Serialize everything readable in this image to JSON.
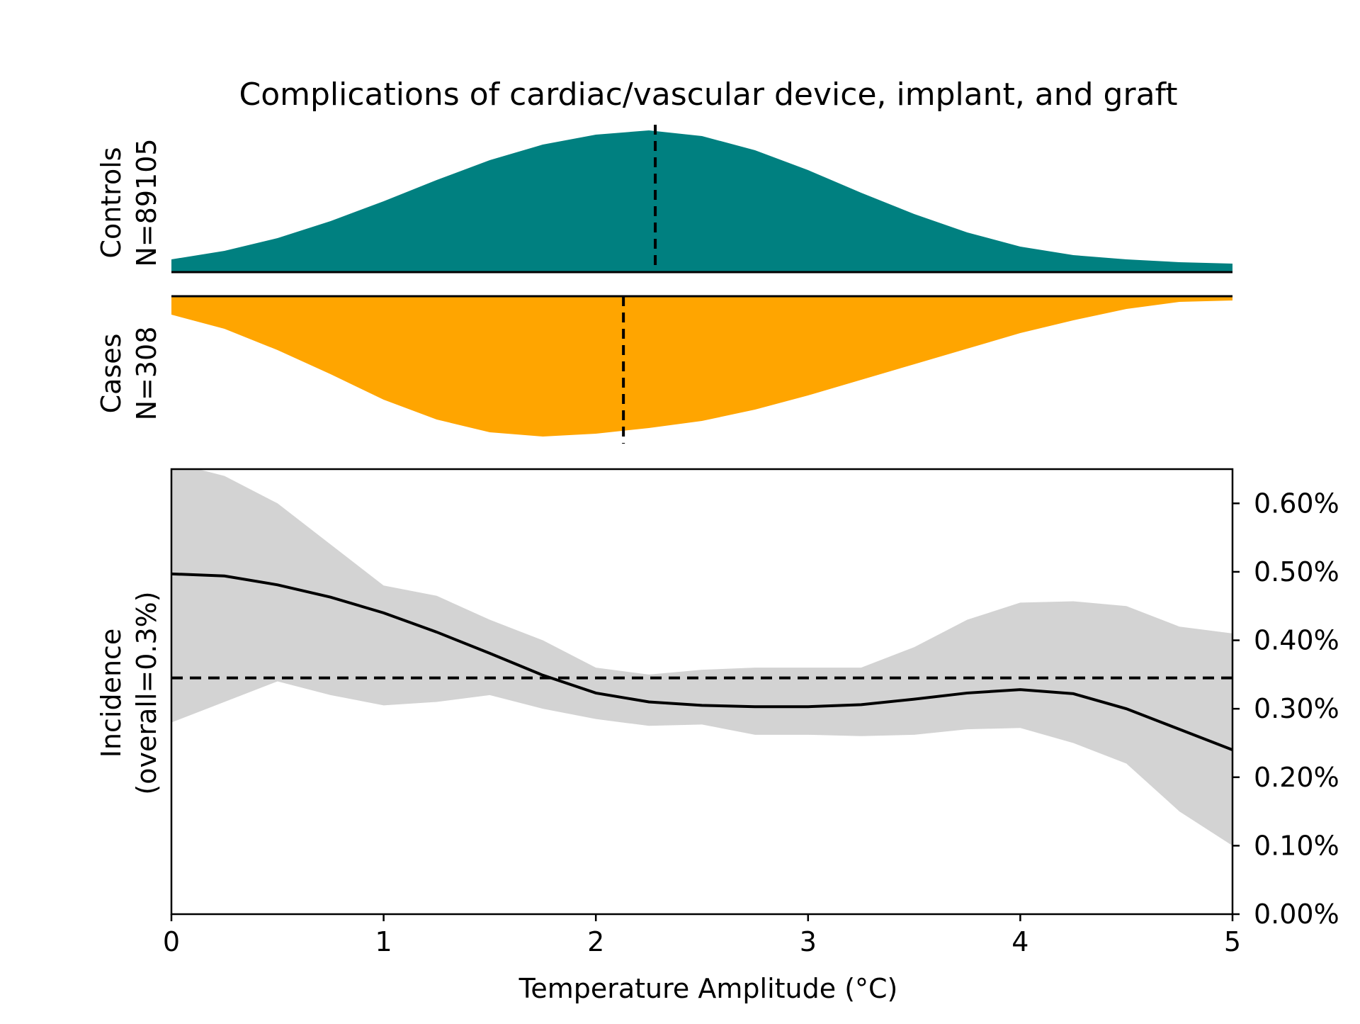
{
  "chart_data": {
    "type": "area",
    "title": "Complications of cardiac/vascular device, implant, and graft",
    "xlabel": "Temperature Amplitude (°C)",
    "xlim": [
      0,
      5
    ],
    "x_ticks": [
      "0",
      "1",
      "2",
      "3",
      "4",
      "5"
    ],
    "panels": {
      "controls": {
        "label_line1": "Controls",
        "label_line2": "N=89105",
        "color": "#008080",
        "median": 2.28,
        "density": {
          "x": [
            0,
            0.25,
            0.5,
            0.75,
            1,
            1.25,
            1.5,
            1.75,
            2,
            2.25,
            2.5,
            2.75,
            3,
            3.25,
            3.5,
            3.75,
            4,
            4.25,
            4.5,
            4.75,
            5
          ],
          "y": [
            0.09,
            0.15,
            0.24,
            0.36,
            0.5,
            0.65,
            0.79,
            0.9,
            0.97,
            1.0,
            0.96,
            0.86,
            0.72,
            0.56,
            0.41,
            0.28,
            0.18,
            0.12,
            0.09,
            0.07,
            0.06
          ]
        }
      },
      "cases": {
        "label_line1": "Cases",
        "label_line2": "N=308",
        "color": "#ffa500",
        "median": 2.13,
        "density": {
          "x": [
            0,
            0.25,
            0.5,
            0.75,
            1,
            1.25,
            1.5,
            1.75,
            2,
            2.25,
            2.5,
            2.75,
            3,
            3.25,
            3.5,
            3.75,
            4,
            4.25,
            4.5,
            4.75,
            5
          ],
          "y": [
            0.13,
            0.23,
            0.38,
            0.55,
            0.73,
            0.87,
            0.96,
            0.99,
            0.97,
            0.93,
            0.88,
            0.8,
            0.7,
            0.59,
            0.48,
            0.37,
            0.26,
            0.17,
            0.09,
            0.04,
            0.03
          ]
        }
      }
    },
    "incidence": {
      "ylabel_line1": "Incidence",
      "ylabel_line2": "(overall=0.3%)",
      "ylim": [
        0,
        0.65
      ],
      "y_ticks": [
        0,
        0.1,
        0.2,
        0.3,
        0.4,
        0.5,
        0.6
      ],
      "y_tick_labels": [
        "0.00%",
        "0.10%",
        "0.20%",
        "0.30%",
        "0.40%",
        "0.50%",
        "0.60%"
      ],
      "overall_line": 0.345,
      "x": [
        0,
        0.25,
        0.5,
        0.75,
        1,
        1.25,
        1.5,
        1.75,
        2,
        2.25,
        2.5,
        2.75,
        3,
        3.25,
        3.5,
        3.75,
        4,
        4.25,
        4.5,
        4.75,
        5
      ],
      "mean": [
        0.497,
        0.494,
        0.481,
        0.463,
        0.44,
        0.412,
        0.381,
        0.349,
        0.323,
        0.31,
        0.305,
        0.303,
        0.303,
        0.306,
        0.314,
        0.323,
        0.328,
        0.322,
        0.3,
        0.27,
        0.24
      ],
      "upper": [
        0.66,
        0.64,
        0.6,
        0.54,
        0.48,
        0.465,
        0.43,
        0.4,
        0.36,
        0.35,
        0.357,
        0.36,
        0.36,
        0.36,
        0.39,
        0.43,
        0.455,
        0.457,
        0.45,
        0.42,
        0.41
      ],
      "lower": [
        0.28,
        0.31,
        0.34,
        0.32,
        0.305,
        0.31,
        0.32,
        0.3,
        0.285,
        0.275,
        0.277,
        0.262,
        0.262,
        0.26,
        0.262,
        0.27,
        0.272,
        0.25,
        0.22,
        0.15,
        0.1
      ]
    }
  }
}
